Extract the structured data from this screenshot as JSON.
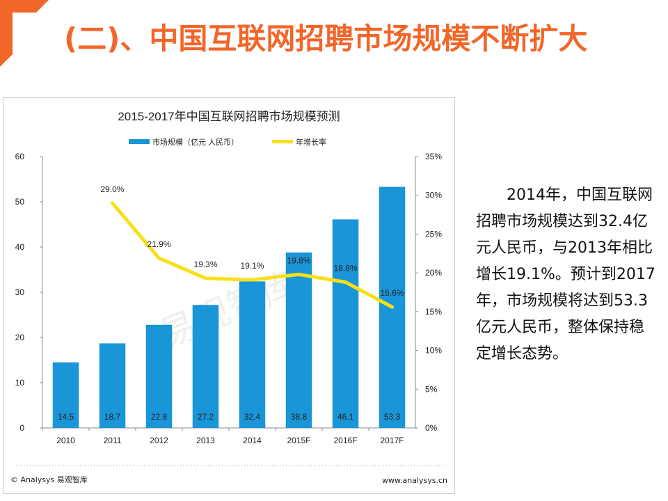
{
  "slide": {
    "title": "(二)、中国互联网招聘市场规模不断扩大",
    "accent_color": "#f2662a",
    "corner_icon": "orange-corner-bracket"
  },
  "description": "2014年，中国互联网招聘市场规模达到32.4亿元人民币，与2013年相比增长19.1%。预计到2017年，市场规模将达到53.3亿元人民币，整体保持稳定增长态势。",
  "footer": {
    "source": "© Analysys 易观智库",
    "url": "www.analysys.cn"
  },
  "chart_data": {
    "type": "bar",
    "title": "2015-2017年中国互联网招聘市场规模预测",
    "categories": [
      "2010",
      "2011",
      "2012",
      "2013",
      "2014",
      "2015F",
      "2016F",
      "2017F"
    ],
    "series": [
      {
        "name": "市场规模（亿元 人民币）",
        "type": "bar",
        "axis": "left",
        "color": "#1a95d8",
        "values": [
          14.5,
          18.7,
          22.8,
          27.2,
          32.4,
          38.8,
          46.1,
          53.3
        ],
        "labels": [
          "14.5",
          "18.7",
          "22.8",
          "27.2",
          "32.4",
          "38.8",
          "46.1",
          "53.3"
        ]
      },
      {
        "name": "年增长率",
        "type": "line",
        "axis": "right",
        "color": "#f7e017",
        "values": [
          null,
          29.0,
          21.9,
          19.3,
          19.1,
          19.8,
          18.8,
          15.6
        ],
        "labels": [
          "",
          "29.0%",
          "21.9%",
          "19.3%",
          "19.1%",
          "19.8%",
          "18.8%",
          "15.6%"
        ]
      }
    ],
    "ylim": [
      0,
      60
    ],
    "yticks": [
      "0",
      "10",
      "20",
      "30",
      "40",
      "50",
      "60"
    ],
    "y2lim": [
      0,
      35
    ],
    "y2ticks": [
      "0%",
      "5%",
      "10%",
      "15%",
      "20%",
      "25%",
      "30%",
      "35%"
    ],
    "legend_position": "top-center",
    "grid": false
  }
}
